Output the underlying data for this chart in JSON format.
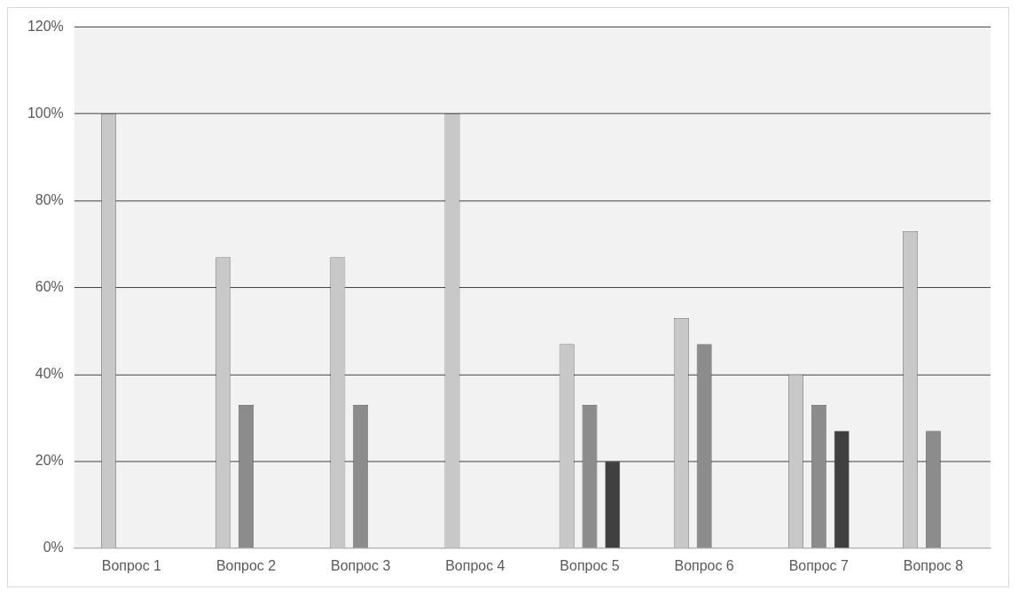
{
  "chart_data": {
    "type": "bar",
    "categories": [
      "Вопрос 1",
      "Вопрос 2",
      "Вопрос 3",
      "Вопрос 4",
      "Вопрос 5",
      "Вопрос 6",
      "Вопрос 7",
      "Вопрос 8"
    ],
    "series": [
      {
        "color": "#c8c8c8",
        "values": [
          100,
          67,
          67,
          100,
          47,
          53,
          40,
          73
        ]
      },
      {
        "color": "#8c8c8c",
        "values": [
          null,
          33,
          33,
          null,
          33,
          47,
          33,
          27
        ]
      },
      {
        "color": "#404040",
        "values": [
          null,
          null,
          null,
          null,
          20,
          null,
          27,
          null
        ]
      }
    ],
    "ylim": [
      0,
      120
    ],
    "yticks": [
      {
        "value": 0,
        "label": "0%"
      },
      {
        "value": 20,
        "label": "20%"
      },
      {
        "value": 40,
        "label": "40%"
      },
      {
        "value": 60,
        "label": "60%"
      },
      {
        "value": 80,
        "label": "80%"
      },
      {
        "value": 100,
        "label": "100%"
      },
      {
        "value": 120,
        "label": "120%"
      }
    ],
    "grid": "y",
    "legend": false
  }
}
